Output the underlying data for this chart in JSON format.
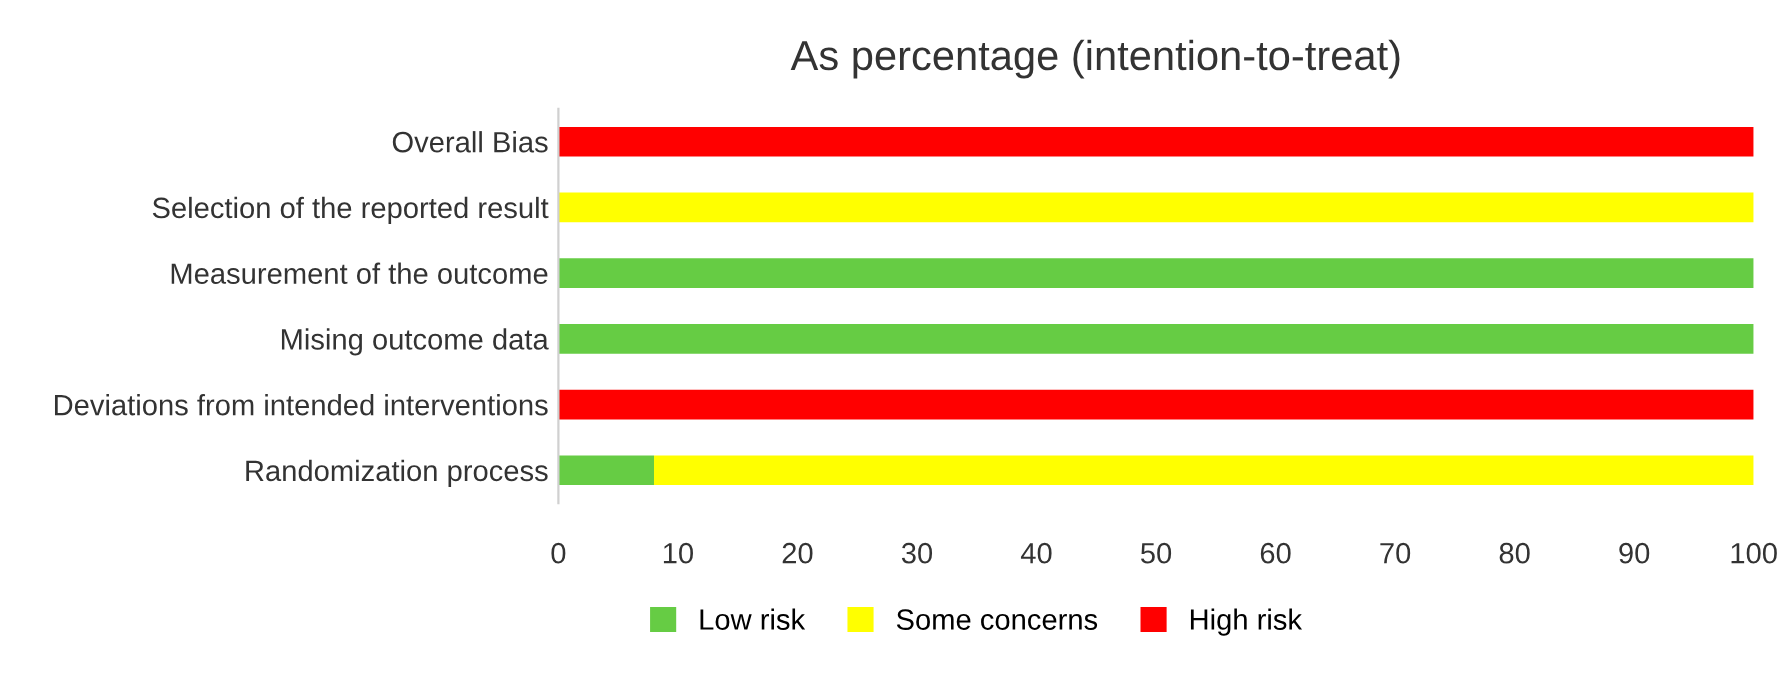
{
  "chart_data": {
    "type": "bar",
    "orientation": "horizontal",
    "stacked": true,
    "title": "As percentage (intention-to-treat)",
    "categories": [
      "Overall Bias",
      "Selection of the reported result",
      "Measurement of the outcome",
      "Mising outcome data",
      "Deviations from intended interventions",
      "Randomization process"
    ],
    "series": [
      {
        "name": "Low risk",
        "color": "#66cc44",
        "values": [
          0,
          0,
          100,
          100,
          0,
          8
        ]
      },
      {
        "name": "Some concerns",
        "color": "#ffff00",
        "values": [
          0,
          100,
          0,
          0,
          0,
          92
        ]
      },
      {
        "name": "High risk",
        "color": "#ff0000",
        "values": [
          100,
          0,
          0,
          0,
          100,
          0
        ]
      }
    ],
    "xlim": [
      0,
      100
    ],
    "xticks": [
      0,
      10,
      20,
      30,
      40,
      50,
      60,
      70,
      80,
      90,
      100
    ],
    "grid": false,
    "legend": "bottom"
  }
}
